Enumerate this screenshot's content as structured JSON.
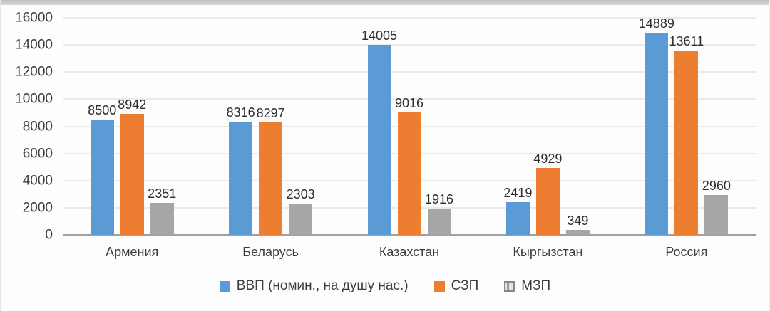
{
  "chart_data": {
    "type": "bar",
    "categories": [
      "Армения",
      "Беларусь",
      "Казахстан",
      "Кыргызстан",
      "Россия"
    ],
    "series": [
      {
        "name": "ВВП (номин., на душу нас.)",
        "color": "#5B9BD5",
        "values": [
          8500,
          8316,
          14005,
          2419,
          14889
        ]
      },
      {
        "name": "СЗП",
        "color": "#ED7D31",
        "values": [
          8942,
          8297,
          9016,
          4929,
          13611
        ]
      },
      {
        "name": "МЗП",
        "color": "#A6A6A6",
        "values": [
          2351,
          2303,
          1916,
          349,
          2960
        ]
      }
    ],
    "ylim": [
      0,
      16000
    ],
    "ytick_step": 2000,
    "yticks": [
      "16000",
      "14000",
      "12000",
      "10000",
      "8000",
      "6000",
      "4000",
      "2000",
      "0"
    ],
    "grid": true,
    "grid_color": "#d8d8d8",
    "axis_line_color": "#a0a0a0",
    "data_labels": true,
    "legend_position": "bottom",
    "title": "",
    "xlabel": "",
    "ylabel": ""
  }
}
